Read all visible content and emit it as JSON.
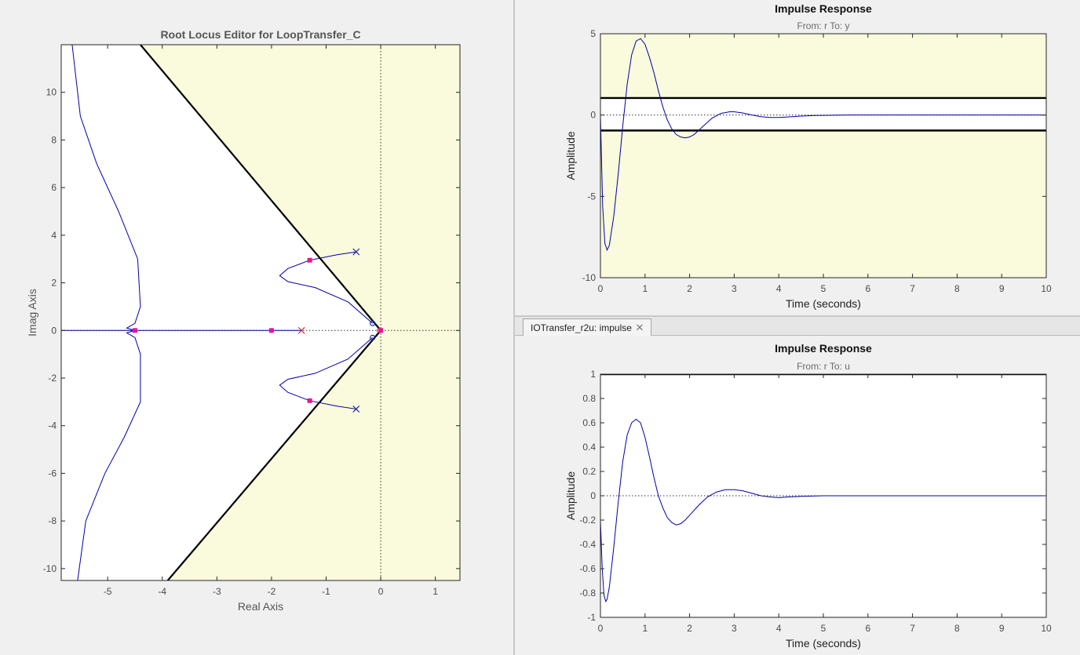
{
  "tab": {
    "label": "IOTransfer_r2u: impulse"
  },
  "chart_data": [
    {
      "type": "line",
      "title": "Root Locus Editor for LoopTransfer_C",
      "xlabel": "Real Axis",
      "ylabel": "Imag Axis",
      "xlim": [
        -5.85,
        1.45
      ],
      "ylim": [
        -10.5,
        12.0
      ],
      "xticks": [
        -5,
        -4,
        -3,
        -2,
        -1,
        0,
        1
      ],
      "yticks": [
        -10,
        -8,
        -6,
        -4,
        -2,
        0,
        2,
        4,
        6,
        8,
        10
      ],
      "shaded_region": {
        "color": "#fafadc",
        "boundary_lines": [
          [
            [
              0,
              0
            ],
            [
              -4.4,
              12.0
            ]
          ],
          [
            [
              0,
              0
            ],
            [
              -3.9,
              -10.5
            ]
          ]
        ]
      },
      "open_loop_poles": [
        [
          -0.45,
          3.3
        ],
        [
          -0.45,
          -3.3
        ],
        [
          -1.45,
          0
        ]
      ],
      "open_loop_zeros": [
        [
          -0.15,
          0.3
        ],
        [
          -0.15,
          -0.3
        ],
        [
          -0.02,
          0
        ]
      ],
      "closed_loop_poles": [
        [
          -1.3,
          2.95
        ],
        [
          -1.3,
          -2.95
        ],
        [
          -2.0,
          0
        ],
        [
          -4.5,
          0
        ],
        [
          0,
          0
        ]
      ],
      "series": [
        {
          "name": "",
          "points": [
            [
              -0.45,
              3.3
            ],
            [
              -0.8,
              3.18
            ],
            [
              -1.3,
              2.95
            ],
            [
              -1.7,
              2.6
            ],
            [
              -1.85,
              2.3
            ],
            [
              -1.7,
              2.05
            ],
            [
              -1.2,
              1.8
            ],
            [
              -0.6,
              1.2
            ],
            [
              -0.15,
              0.3
            ]
          ]
        },
        {
          "name": "",
          "points": [
            [
              -0.45,
              -3.3
            ],
            [
              -0.8,
              -3.18
            ],
            [
              -1.3,
              -2.95
            ],
            [
              -1.7,
              -2.6
            ],
            [
              -1.85,
              -2.3
            ],
            [
              -1.7,
              -2.05
            ],
            [
              -1.2,
              -1.8
            ],
            [
              -0.6,
              -1.2
            ],
            [
              -0.15,
              -0.3
            ]
          ]
        },
        {
          "name": "",
          "points": [
            [
              -5.85,
              0
            ],
            [
              -1.45,
              0
            ]
          ]
        },
        {
          "name": "",
          "points": [
            [
              -5.65,
              12.0
            ],
            [
              -5.5,
              9.0
            ],
            [
              -5.2,
              7.0
            ],
            [
              -4.8,
              5.0
            ],
            [
              -4.45,
              3.0
            ],
            [
              -4.4,
              1.0
            ],
            [
              -4.5,
              0.3
            ],
            [
              -4.65,
              0.1
            ],
            [
              -4.5,
              0
            ]
          ]
        },
        {
          "name": "",
          "points": [
            [
              -5.55,
              -10.5
            ],
            [
              -5.4,
              -8.0
            ],
            [
              -5.05,
              -6.0
            ],
            [
              -4.7,
              -4.5
            ],
            [
              -4.4,
              -3.0
            ],
            [
              -4.4,
              -1.0
            ],
            [
              -4.5,
              -0.3
            ],
            [
              -4.65,
              -0.1
            ],
            [
              -4.5,
              0
            ]
          ]
        }
      ]
    },
    {
      "type": "line",
      "title": "Impulse Response",
      "subtitle": "From: r  To: y",
      "xlabel": "Time (seconds)",
      "ylabel": "Amplitude",
      "xlim": [
        0,
        10
      ],
      "ylim": [
        -10,
        5
      ],
      "xticks": [
        0,
        1,
        2,
        3,
        4,
        5,
        6,
        7,
        8,
        9,
        10
      ],
      "yticks": [
        -10,
        -5,
        0,
        5
      ],
      "bounds": [
        1.05,
        -0.95
      ],
      "series": [
        {
          "name": "",
          "x": [
            0,
            0.05,
            0.1,
            0.15,
            0.2,
            0.3,
            0.4,
            0.5,
            0.6,
            0.7,
            0.8,
            0.9,
            1.0,
            1.1,
            1.2,
            1.3,
            1.4,
            1.5,
            1.6,
            1.7,
            1.8,
            1.9,
            2.0,
            2.1,
            2.2,
            2.3,
            2.5,
            2.7,
            2.9,
            3.0,
            3.2,
            3.4,
            3.6,
            3.8,
            4.0,
            4.2,
            4.4,
            4.6,
            4.8,
            5.0,
            5.5,
            6.0,
            7.0,
            8.0,
            9.0,
            10.0
          ],
          "y": [
            0,
            -5.6,
            -7.9,
            -8.3,
            -8.0,
            -6.2,
            -3.6,
            -0.7,
            1.9,
            3.7,
            4.55,
            4.7,
            4.35,
            3.55,
            2.6,
            1.5,
            0.5,
            -0.3,
            -0.85,
            -1.2,
            -1.35,
            -1.4,
            -1.35,
            -1.2,
            -0.95,
            -0.7,
            -0.2,
            0.1,
            0.2,
            0.2,
            0.12,
            0.0,
            -0.1,
            -0.15,
            -0.15,
            -0.12,
            -0.08,
            -0.05,
            -0.03,
            -0.02,
            0.0,
            0.0,
            0.0,
            0.0,
            0.0,
            0.0
          ]
        }
      ]
    },
    {
      "type": "line",
      "title": "Impulse Response",
      "subtitle": "From: r  To: u",
      "xlabel": "Time (seconds)",
      "ylabel": "Amplitude",
      "xlim": [
        0,
        10
      ],
      "ylim": [
        -1,
        1
      ],
      "xticks": [
        0,
        1,
        2,
        3,
        4,
        5,
        6,
        7,
        8,
        9,
        10
      ],
      "yticks": [
        -1,
        -0.8,
        -0.6,
        -0.4,
        -0.2,
        0,
        0.2,
        0.4,
        0.6,
        0.8,
        1
      ],
      "bounds": [
        1.0
      ],
      "series": [
        {
          "name": "",
          "x": [
            0,
            0.04,
            0.08,
            0.12,
            0.15,
            0.2,
            0.3,
            0.4,
            0.5,
            0.6,
            0.7,
            0.8,
            0.9,
            1.0,
            1.1,
            1.2,
            1.3,
            1.4,
            1.5,
            1.6,
            1.7,
            1.8,
            1.9,
            2.0,
            2.2,
            2.4,
            2.6,
            2.8,
            3.0,
            3.2,
            3.4,
            3.6,
            3.8,
            4.0,
            4.2,
            4.5,
            5.0,
            5.5,
            6.0,
            7.0,
            8.0,
            9.0,
            10.0
          ],
          "y": [
            -0.2,
            -0.6,
            -0.82,
            -0.87,
            -0.85,
            -0.75,
            -0.42,
            -0.05,
            0.28,
            0.5,
            0.6,
            0.63,
            0.6,
            0.48,
            0.32,
            0.15,
            0.0,
            -0.1,
            -0.18,
            -0.22,
            -0.24,
            -0.23,
            -0.2,
            -0.16,
            -0.08,
            -0.01,
            0.03,
            0.05,
            0.05,
            0.04,
            0.02,
            0.0,
            -0.01,
            -0.015,
            -0.01,
            -0.005,
            0.0,
            0.0,
            0.0,
            0.0,
            0.0,
            0.0,
            0.0
          ]
        }
      ]
    }
  ]
}
